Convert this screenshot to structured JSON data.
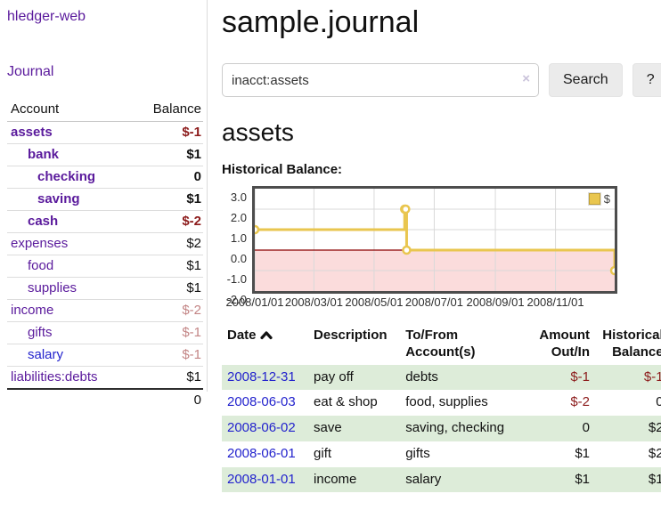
{
  "colors": {
    "purple": "#5a1a9c",
    "blue": "#2323cd",
    "negative": "#8c1b1b",
    "rose": "#c38585",
    "stripe": "#ddecd9",
    "gold": "#e9c64f",
    "goldBorder": "#bd9e38",
    "pink": "#fbdcdc",
    "zeroLine": "#8b0000",
    "grid": "#d9d9d9",
    "chartBorder": "#4d4d4d",
    "divider": "#dcdcdc"
  },
  "app": {
    "title": "hledger-web",
    "journal_link": "Journal"
  },
  "sidebar": {
    "header": {
      "account": "Account",
      "balance": "Balance"
    },
    "rows": [
      {
        "name": "assets",
        "depth": 0,
        "bold": true,
        "balance": "$-1",
        "balance_color": "negative",
        "link_color": "purple"
      },
      {
        "name": "bank",
        "depth": 1,
        "bold": true,
        "balance": "$1",
        "balance_color": "normal",
        "link_color": "purple"
      },
      {
        "name": "checking",
        "depth": 2,
        "bold": true,
        "balance": "0",
        "balance_color": "normal",
        "link_color": "purple"
      },
      {
        "name": "saving",
        "depth": 2,
        "bold": true,
        "balance": "$1",
        "balance_color": "normal",
        "link_color": "purple"
      },
      {
        "name": "cash",
        "depth": 1,
        "bold": true,
        "balance": "$-2",
        "balance_color": "negative",
        "link_color": "purple"
      },
      {
        "name": "expenses",
        "depth": 0,
        "bold": false,
        "balance": "$2",
        "balance_color": "normal",
        "link_color": "purple"
      },
      {
        "name": "food",
        "depth": 1,
        "bold": false,
        "balance": "$1",
        "balance_color": "normal",
        "link_color": "purple"
      },
      {
        "name": "supplies",
        "depth": 1,
        "bold": false,
        "balance": "$1",
        "balance_color": "normal",
        "link_color": "purple"
      },
      {
        "name": "income",
        "depth": 0,
        "bold": false,
        "balance": "$-2",
        "balance_color": "rose",
        "link_color": "purple"
      },
      {
        "name": "gifts",
        "depth": 1,
        "bold": false,
        "balance": "$-1",
        "balance_color": "rose",
        "link_color": "purple"
      },
      {
        "name": "salary",
        "depth": 1,
        "bold": false,
        "balance": "$-1",
        "balance_color": "rose",
        "link_color": "blue"
      },
      {
        "name": "liabilities:debts",
        "depth": 0,
        "bold": false,
        "balance": "$1",
        "balance_color": "normal",
        "link_color": "purple"
      }
    ],
    "total": "0"
  },
  "header": {
    "title": "sample.journal"
  },
  "search": {
    "value": "inacct:assets",
    "clear_icon": "×",
    "button_label": "Search",
    "help_label": "?"
  },
  "page": {
    "heading": "assets",
    "chart_title": "Historical Balance:"
  },
  "chart_data": {
    "type": "step-line",
    "title": "Historical Balance:",
    "legend": [
      {
        "label": "$",
        "color": "#e9c64f"
      }
    ],
    "x_domain": [
      "2008-01-01",
      "2008-12-31"
    ],
    "ylim": [
      -2.0,
      3.0
    ],
    "yticks": [
      3.0,
      2.0,
      1.0,
      0.0,
      -1.0,
      -2.0
    ],
    "xticks": [
      "2008/01/01",
      "2008/03/01",
      "2008/05/01",
      "2008/07/01",
      "2008/09/01",
      "2008/11/01"
    ],
    "series": [
      {
        "name": "$",
        "points": [
          [
            "2008-01-01",
            1
          ],
          [
            "2008-06-01",
            2
          ],
          [
            "2008-06-02",
            2
          ],
          [
            "2008-06-03",
            0
          ],
          [
            "2008-12-31",
            -1
          ]
        ]
      }
    ],
    "grid": true,
    "legend_position": "top-right"
  },
  "register": {
    "headers": [
      {
        "lines": [
          "Date"
        ],
        "sortable": true,
        "align": "left"
      },
      {
        "lines": [
          "Description"
        ],
        "sortable": false,
        "align": "left"
      },
      {
        "lines": [
          "To/From",
          "Account(s)"
        ],
        "sortable": false,
        "align": "left"
      },
      {
        "lines": [
          "Amount",
          "Out/In"
        ],
        "sortable": false,
        "align": "right"
      },
      {
        "lines": [
          "Historical",
          "Balance"
        ],
        "sortable": false,
        "align": "right"
      }
    ],
    "rows": [
      {
        "date": "2008-12-31",
        "description": "pay off",
        "accounts": "debts",
        "amount": "$-1",
        "amount_color": "negative",
        "balance": "$-1",
        "balance_color": "negative"
      },
      {
        "date": "2008-06-03",
        "description": "eat & shop",
        "accounts": "food, supplies",
        "amount": "$-2",
        "amount_color": "negative",
        "balance": "0",
        "balance_color": "normal"
      },
      {
        "date": "2008-06-02",
        "description": "save",
        "accounts": "saving, checking",
        "amount": "0",
        "amount_color": "normal",
        "balance": "$2",
        "balance_color": "normal"
      },
      {
        "date": "2008-06-01",
        "description": "gift",
        "accounts": "gifts",
        "amount": "$1",
        "amount_color": "normal",
        "balance": "$2",
        "balance_color": "normal"
      },
      {
        "date": "2008-01-01",
        "description": "income",
        "accounts": "salary",
        "amount": "$1",
        "amount_color": "normal",
        "balance": "$1",
        "balance_color": "normal"
      }
    ]
  }
}
